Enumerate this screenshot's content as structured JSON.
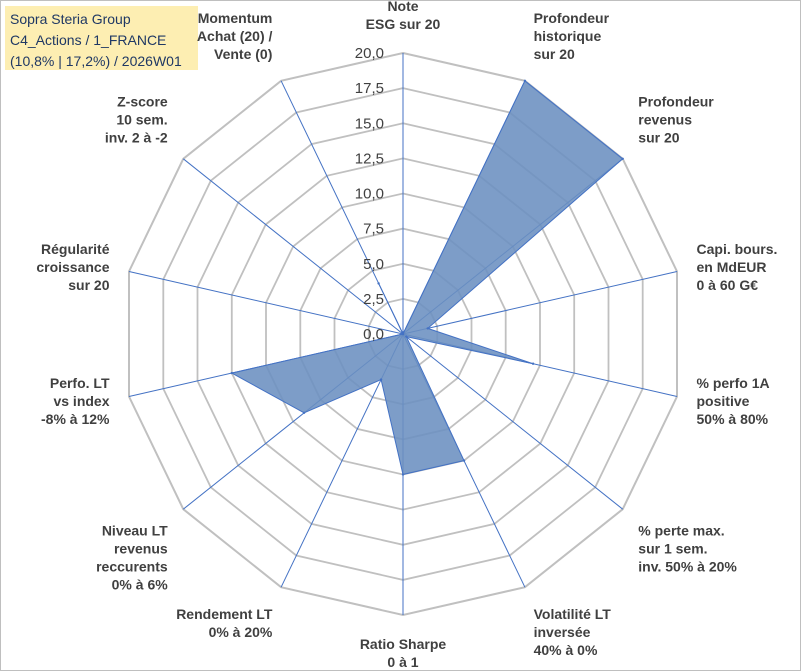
{
  "title": {
    "line1": "Sopra Steria Group",
    "line2": "C4_Actions / 1_FRANCE",
    "line3": "(10,8% | 17,2%) / 2026W01"
  },
  "colors": {
    "fill": "#6b8fc0",
    "stroke": "#4472c4",
    "spoke": "#4472c4",
    "grid": "#c0c0c0",
    "text": "#404040"
  },
  "chart_data": {
    "type": "radar",
    "rlim": [
      0,
      20
    ],
    "ticks": [
      "0,0",
      "2,5",
      "5,0",
      "7,5",
      "10,0",
      "12,5",
      "15,0",
      "17,5",
      "20,0"
    ],
    "grid": true,
    "axes": [
      [
        "Note",
        "ESG sur 20"
      ],
      [
        "Profondeur",
        "historique",
        "sur 20"
      ],
      [
        "Profondeur",
        "revenus",
        "sur 20"
      ],
      [
        "Capi. bours.",
        "en MdEUR",
        "0 à 60 G€"
      ],
      [
        "% perfo 1A",
        "positive",
        "50% à 80%"
      ],
      [
        "% perte max.",
        "sur 1 sem.",
        "inv. 50% à 20%"
      ],
      [
        "Volatilité LT",
        "inversée",
        "40% à 0%"
      ],
      [
        "Ratio Sharpe",
        "0 à 1"
      ],
      [
        "Rendement LT",
        "0% à 20%"
      ],
      [
        "Niveau LT",
        "revenus",
        "reccurents",
        "0% à 6%"
      ],
      [
        "Perfo. LT",
        "vs index",
        "-8% à 12%"
      ],
      [
        "Régularité",
        "croissance",
        "sur 20"
      ],
      [
        "Z-score",
        "10 sem.",
        "inv. 2 à -2"
      ],
      [
        "Momentum",
        "Achat (20) /",
        "Vente (0)"
      ]
    ],
    "series": [
      {
        "values": [
          0,
          20,
          20,
          1.8,
          9.5,
          0.3,
          10,
          10,
          3.6,
          9,
          12.5,
          0,
          0,
          4
        ]
      }
    ]
  }
}
